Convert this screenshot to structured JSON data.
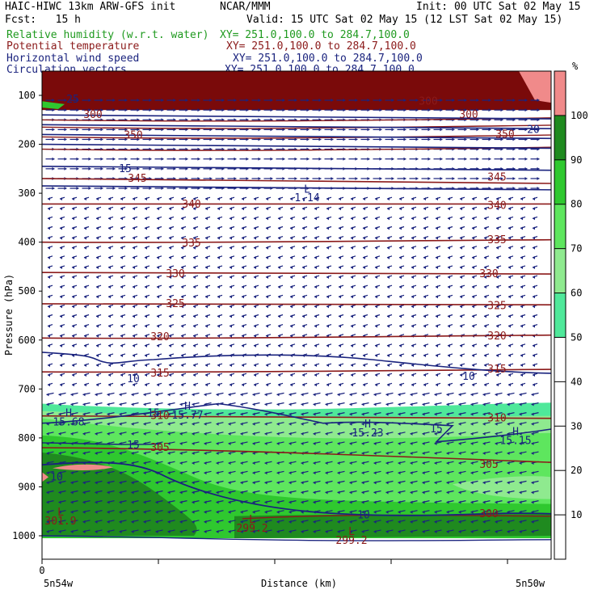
{
  "header": {
    "model": "HAIC-HIWC 13km ARW-GFS init",
    "org": "NCAR/MMM",
    "init": "Init: 00 UTC Sat 02 May 15",
    "fcst": "Fcst:   15 h",
    "valid": "Valid: 15 UTC Sat 02 May 15 (12 LST Sat 02 May 15)"
  },
  "legend": [
    {
      "label": "Relative humidity (w.r.t. water)",
      "xy": "XY= 251.0,100.0 to 284.7,100.0",
      "color": "#1f9a1f"
    },
    {
      "label": "Potential temperature",
      "xy": "XY= 251.0,100.0 to 284.7,100.0",
      "color": "#8b1a1a"
    },
    {
      "label": "Horizontal wind speed",
      "xy": "XY= 251.0,100.0 to 284.7,100.0",
      "color": "#1a237e"
    },
    {
      "label": "Circulation vectors",
      "xy": "XY= 251.0,100.0 to 284.7,100.0",
      "color": "#1a237e"
    }
  ],
  "chart_data": {
    "type": "heatmap",
    "xlabel": "Distance (km)",
    "ylabel": "Pressure (hPa)",
    "x_ticks": [
      "0"
    ],
    "x_end_labels": {
      "left": "5n54w",
      "right": "5n50w"
    },
    "y_ticks": [
      100,
      200,
      300,
      400,
      500,
      600,
      700,
      800,
      900,
      1000
    ],
    "ylim": [
      1050,
      50
    ],
    "colorbar": {
      "unit": "%",
      "ticks": [
        10,
        20,
        30,
        40,
        50,
        60,
        70,
        80,
        90,
        100
      ],
      "bands": [
        {
          "from": 50,
          "to": 60,
          "color": "#4fe89a"
        },
        {
          "from": 60,
          "to": 70,
          "color": "#8fea8f"
        },
        {
          "from": 70,
          "to": 80,
          "color": "#5ee65e"
        },
        {
          "from": 80,
          "to": 90,
          "color": "#2fc82f"
        },
        {
          "from": 90,
          "to": 100,
          "color": "#1f8a1f"
        },
        {
          "from": 100,
          "to": 110,
          "color": "#f08a8a"
        }
      ]
    },
    "theta_labels": [
      "300",
      "305",
      "310",
      "315",
      "320",
      "325",
      "330",
      "335",
      "340",
      "345",
      "350",
      "350"
    ],
    "theta_label_positions": [
      {
        "text": "340",
        "x": 237,
        "p": 323
      },
      {
        "text": "340",
        "x": 615,
        "p": 325
      },
      {
        "text": "335",
        "x": 237,
        "p": 402
      },
      {
        "text": "335",
        "x": 615,
        "p": 396
      },
      {
        "text": "330",
        "x": 217,
        "p": 465
      },
      {
        "text": "330",
        "x": 605,
        "p": 465
      },
      {
        "text": "325",
        "x": 217,
        "p": 526
      },
      {
        "text": "325",
        "x": 615,
        "p": 530
      },
      {
        "text": "320",
        "x": 198,
        "p": 594
      },
      {
        "text": "320",
        "x": 615,
        "p": 592
      },
      {
        "text": "315",
        "x": 198,
        "p": 668
      },
      {
        "text": "315",
        "x": 615,
        "p": 660
      },
      {
        "text": "310",
        "x": 198,
        "p": 755
      },
      {
        "text": "310",
        "x": 615,
        "p": 760
      },
      {
        "text": "305",
        "x": 198,
        "p": 820
      },
      {
        "text": "305",
        "x": 605,
        "p": 855
      },
      {
        "text": "300",
        "x": 605,
        "p": 955
      },
      {
        "text": "350",
        "x": 165,
        "p": 182
      },
      {
        "text": "350",
        "x": 625,
        "p": 180
      },
      {
        "text": "345",
        "x": 170,
        "p": 270
      },
      {
        "text": "345",
        "x": 615,
        "p": 268
      },
      {
        "text": "300",
        "x": 530,
        "p": 112
      },
      {
        "text": "300",
        "x": 580,
        "p": 140
      },
      {
        "text": "300",
        "x": 115,
        "p": 140
      }
    ],
    "wind_labels": [
      {
        "text": "10",
        "x": 165,
        "p": 680
      },
      {
        "text": "10",
        "x": 580,
        "p": 675
      },
      {
        "text": "15",
        "x": 190,
        "p": 750
      },
      {
        "text": "15",
        "x": 165,
        "p": 815
      },
      {
        "text": "15",
        "x": 540,
        "p": 782
      },
      {
        "text": "15",
        "x": 155,
        "p": 250
      },
      {
        "text": "10",
        "x": 70,
        "p": 880
      },
      {
        "text": "10",
        "x": 450,
        "p": 958
      },
      {
        "text": "20",
        "x": 660,
        "p": 170
      },
      {
        "text": "25",
        "x": 90,
        "p": 108
      }
    ],
    "extrema": [
      {
        "text": "L",
        "value": "1.14",
        "x": 380,
        "p": 310
      },
      {
        "text": "H",
        "value": "15.68",
        "x": 85,
        "p": 768
      },
      {
        "text": "H",
        "value": "15.77",
        "x": 232,
        "p": 754
      },
      {
        "text": "H",
        "value": "15.23",
        "x": 455,
        "p": 790
      },
      {
        "text": "H",
        "value": "15.15",
        "x": 638,
        "p": 806
      },
      {
        "text": "L",
        "value": "301.9",
        "x": 75,
        "p": 970
      },
      {
        "text": "L",
        "value": "299.2",
        "x": 312,
        "p": 985
      },
      {
        "text": "L",
        "value": "299.2",
        "x": 435,
        "p": 1010
      }
    ]
  }
}
